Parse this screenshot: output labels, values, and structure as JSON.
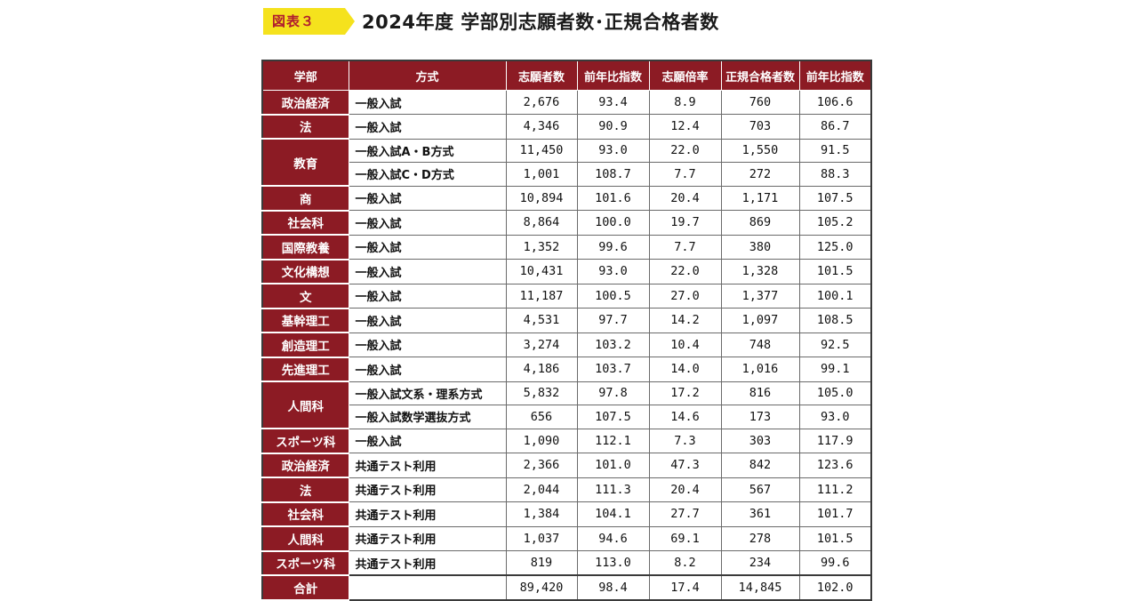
{
  "header": {
    "badge": "図表３",
    "title": "2024年度 学部別志願者数･正規合格者数",
    "badge_color": "#f5e21d",
    "badge_text_color": "#b01c2e"
  },
  "chart_data": {
    "type": "table",
    "header_color": "#8c1b24",
    "columns": [
      "学部",
      "方式",
      "志願者数",
      "前年比指数",
      "志願倍率",
      "正規合格者数",
      "前年比指数"
    ],
    "rows": [
      {
        "faculty": "政治経済",
        "span": 1,
        "method": "一般入試",
        "values": [
          "2,676",
          "93.4",
          "8.9",
          "760",
          "106.6"
        ]
      },
      {
        "faculty": "法",
        "span": 1,
        "method": "一般入試",
        "values": [
          "4,346",
          "90.9",
          "12.4",
          "703",
          "86.7"
        ]
      },
      {
        "faculty": "教育",
        "span": 2,
        "method": "一般入試A・B方式",
        "values": [
          "11,450",
          "93.0",
          "22.0",
          "1,550",
          "91.5"
        ]
      },
      {
        "faculty": null,
        "method": "一般入試C・D方式",
        "values": [
          "1,001",
          "108.7",
          "7.7",
          "272",
          "88.3"
        ]
      },
      {
        "faculty": "商",
        "span": 1,
        "method": "一般入試",
        "values": [
          "10,894",
          "101.6",
          "20.4",
          "1,171",
          "107.5"
        ]
      },
      {
        "faculty": "社会科",
        "span": 1,
        "method": "一般入試",
        "values": [
          "8,864",
          "100.0",
          "19.7",
          "869",
          "105.2"
        ]
      },
      {
        "faculty": "国際教養",
        "span": 1,
        "method": "一般入試",
        "values": [
          "1,352",
          "99.6",
          "7.7",
          "380",
          "125.0"
        ]
      },
      {
        "faculty": "文化構想",
        "span": 1,
        "method": "一般入試",
        "values": [
          "10,431",
          "93.0",
          "22.0",
          "1,328",
          "101.5"
        ]
      },
      {
        "faculty": "文",
        "span": 1,
        "method": "一般入試",
        "values": [
          "11,187",
          "100.5",
          "27.0",
          "1,377",
          "100.1"
        ]
      },
      {
        "faculty": "基幹理工",
        "span": 1,
        "method": "一般入試",
        "values": [
          "4,531",
          "97.7",
          "14.2",
          "1,097",
          "108.5"
        ]
      },
      {
        "faculty": "創造理工",
        "span": 1,
        "method": "一般入試",
        "values": [
          "3,274",
          "103.2",
          "10.4",
          "748",
          "92.5"
        ]
      },
      {
        "faculty": "先進理工",
        "span": 1,
        "method": "一般入試",
        "values": [
          "4,186",
          "103.7",
          "14.0",
          "1,016",
          "99.1"
        ]
      },
      {
        "faculty": "人間科",
        "span": 2,
        "method": "一般入試文系・理系方式",
        "values": [
          "5,832",
          "97.8",
          "17.2",
          "816",
          "105.0"
        ]
      },
      {
        "faculty": null,
        "method": "一般入試数学選抜方式",
        "values": [
          "656",
          "107.5",
          "14.6",
          "173",
          "93.0"
        ]
      },
      {
        "faculty": "スポーツ科",
        "span": 1,
        "method": "一般入試",
        "values": [
          "1,090",
          "112.1",
          "7.3",
          "303",
          "117.9"
        ]
      },
      {
        "faculty": "政治経済",
        "span": 1,
        "method": "共通テスト利用",
        "values": [
          "2,366",
          "101.0",
          "47.3",
          "842",
          "123.6"
        ]
      },
      {
        "faculty": "法",
        "span": 1,
        "method": "共通テスト利用",
        "values": [
          "2,044",
          "111.3",
          "20.4",
          "567",
          "111.2"
        ]
      },
      {
        "faculty": "社会科",
        "span": 1,
        "method": "共通テスト利用",
        "values": [
          "1,384",
          "104.1",
          "27.7",
          "361",
          "101.7"
        ]
      },
      {
        "faculty": "人間科",
        "span": 1,
        "method": "共通テスト利用",
        "values": [
          "1,037",
          "94.6",
          "69.1",
          "278",
          "101.5"
        ]
      },
      {
        "faculty": "スポーツ科",
        "span": 1,
        "method": "共通テスト利用",
        "values": [
          "819",
          "113.0",
          "8.2",
          "234",
          "99.6"
        ]
      }
    ],
    "total": {
      "label": "合計",
      "method": "",
      "values": [
        "89,420",
        "98.4",
        "17.4",
        "14,845",
        "102.0"
      ]
    }
  }
}
